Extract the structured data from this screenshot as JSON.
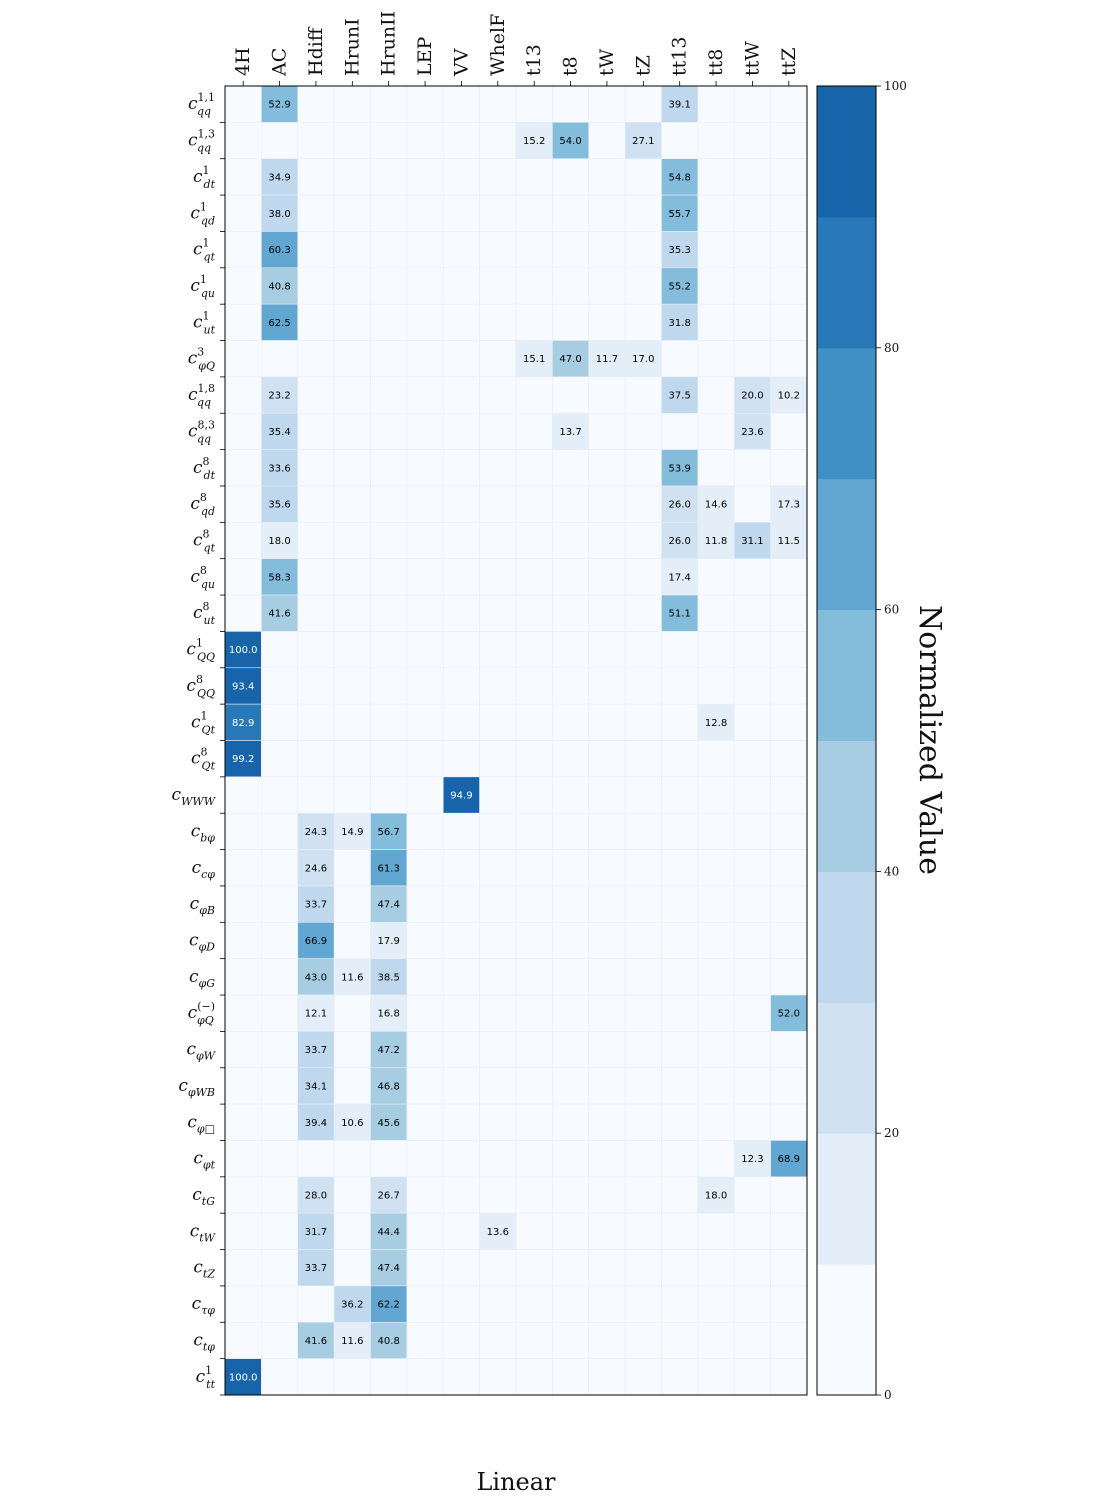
{
  "chart_data": {
    "type": "heatmap",
    "xlabel": "Linear",
    "colorbar_label": "Normalized Value",
    "colorbar_ticks": [
      0,
      20,
      40,
      60,
      80,
      100
    ],
    "value_range": [
      0,
      100
    ],
    "grid": true,
    "columns": [
      "4H",
      "AC",
      "Hdiff",
      "HrunI",
      "HrunII",
      "LEP",
      "VV",
      "WhelF",
      "t13",
      "t8",
      "tW",
      "tZ",
      "tt13",
      "tt8",
      "ttW",
      "ttZ"
    ],
    "rows": [
      {
        "base": "c",
        "sub": "qq",
        "sup": "1,1"
      },
      {
        "base": "c",
        "sub": "qq",
        "sup": "1,3"
      },
      {
        "base": "c",
        "sub": "dt",
        "sup": "1"
      },
      {
        "base": "c",
        "sub": "qd",
        "sup": "1"
      },
      {
        "base": "c",
        "sub": "qt",
        "sup": "1"
      },
      {
        "base": "c",
        "sub": "qu",
        "sup": "1"
      },
      {
        "base": "c",
        "sub": "ut",
        "sup": "1"
      },
      {
        "base": "c",
        "sub": "φQ",
        "sup": "3"
      },
      {
        "base": "c",
        "sub": "qq",
        "sup": "1,8"
      },
      {
        "base": "c",
        "sub": "qq",
        "sup": "8,3"
      },
      {
        "base": "c",
        "sub": "dt",
        "sup": "8"
      },
      {
        "base": "c",
        "sub": "qd",
        "sup": "8"
      },
      {
        "base": "c",
        "sub": "qt",
        "sup": "8"
      },
      {
        "base": "c",
        "sub": "qu",
        "sup": "8"
      },
      {
        "base": "c",
        "sub": "ut",
        "sup": "8"
      },
      {
        "base": "c",
        "sub": "QQ",
        "sup": "1"
      },
      {
        "base": "c",
        "sub": "QQ",
        "sup": "8"
      },
      {
        "base": "c",
        "sub": "Qt",
        "sup": "1"
      },
      {
        "base": "c",
        "sub": "Qt",
        "sup": "8"
      },
      {
        "base": "c",
        "sub": "WWW",
        "sup": ""
      },
      {
        "base": "c",
        "sub": "bφ",
        "sup": ""
      },
      {
        "base": "c",
        "sub": "cφ",
        "sup": ""
      },
      {
        "base": "c",
        "sub": "φB",
        "sup": ""
      },
      {
        "base": "c",
        "sub": "φD",
        "sup": ""
      },
      {
        "base": "c",
        "sub": "φG",
        "sup": ""
      },
      {
        "base": "c",
        "sub": "φQ",
        "sup": "(−)"
      },
      {
        "base": "c",
        "sub": "φW",
        "sup": ""
      },
      {
        "base": "c",
        "sub": "φWB",
        "sup": ""
      },
      {
        "base": "c",
        "sub": "φ□",
        "sup": ""
      },
      {
        "base": "c",
        "sub": "φt",
        "sup": ""
      },
      {
        "base": "c",
        "sub": "tG",
        "sup": ""
      },
      {
        "base": "c",
        "sub": "tW",
        "sup": ""
      },
      {
        "base": "c",
        "sub": "tZ",
        "sup": ""
      },
      {
        "base": "c",
        "sub": "τφ",
        "sup": ""
      },
      {
        "base": "c",
        "sub": "tφ",
        "sup": ""
      },
      {
        "base": "c",
        "sub": "tt",
        "sup": "1"
      }
    ],
    "values": [
      [
        null,
        52.9,
        null,
        null,
        null,
        null,
        null,
        null,
        null,
        null,
        null,
        null,
        39.1,
        null,
        null,
        null
      ],
      [
        null,
        null,
        null,
        null,
        null,
        null,
        null,
        null,
        15.2,
        54.0,
        null,
        27.1,
        null,
        null,
        null,
        null
      ],
      [
        null,
        34.9,
        null,
        null,
        null,
        null,
        null,
        null,
        null,
        null,
        null,
        null,
        54.8,
        null,
        null,
        null
      ],
      [
        null,
        38.0,
        null,
        null,
        null,
        null,
        null,
        null,
        null,
        null,
        null,
        null,
        55.7,
        null,
        null,
        null
      ],
      [
        null,
        60.3,
        null,
        null,
        null,
        null,
        null,
        null,
        null,
        null,
        null,
        null,
        35.3,
        null,
        null,
        null
      ],
      [
        null,
        40.8,
        null,
        null,
        null,
        null,
        null,
        null,
        null,
        null,
        null,
        null,
        55.2,
        null,
        null,
        null
      ],
      [
        null,
        62.5,
        null,
        null,
        null,
        null,
        null,
        null,
        null,
        null,
        null,
        null,
        31.8,
        null,
        null,
        null
      ],
      [
        null,
        null,
        null,
        null,
        null,
        null,
        null,
        null,
        15.1,
        47.0,
        11.7,
        17.0,
        null,
        null,
        null,
        null
      ],
      [
        null,
        23.2,
        null,
        null,
        null,
        null,
        null,
        null,
        null,
        null,
        null,
        null,
        37.5,
        null,
        20.0,
        10.2
      ],
      [
        null,
        35.4,
        null,
        null,
        null,
        null,
        null,
        null,
        null,
        13.7,
        null,
        null,
        null,
        null,
        23.6,
        null
      ],
      [
        null,
        33.6,
        null,
        null,
        null,
        null,
        null,
        null,
        null,
        null,
        null,
        null,
        53.9,
        null,
        null,
        null
      ],
      [
        null,
        35.6,
        null,
        null,
        null,
        null,
        null,
        null,
        null,
        null,
        null,
        null,
        26.0,
        14.6,
        null,
        17.3
      ],
      [
        null,
        18.0,
        null,
        null,
        null,
        null,
        null,
        null,
        null,
        null,
        null,
        null,
        26.0,
        11.8,
        31.1,
        11.5
      ],
      [
        null,
        58.3,
        null,
        null,
        null,
        null,
        null,
        null,
        null,
        null,
        null,
        null,
        17.4,
        null,
        null,
        null
      ],
      [
        null,
        41.6,
        null,
        null,
        null,
        null,
        null,
        null,
        null,
        null,
        null,
        null,
        51.1,
        null,
        null,
        null
      ],
      [
        100.0,
        null,
        null,
        null,
        null,
        null,
        null,
        null,
        null,
        null,
        null,
        null,
        null,
        null,
        null,
        null
      ],
      [
        93.4,
        null,
        null,
        null,
        null,
        null,
        null,
        null,
        null,
        null,
        null,
        null,
        null,
        null,
        null,
        null
      ],
      [
        82.9,
        null,
        null,
        null,
        null,
        null,
        null,
        null,
        null,
        null,
        null,
        null,
        null,
        12.8,
        null,
        null
      ],
      [
        99.2,
        null,
        null,
        null,
        null,
        null,
        null,
        null,
        null,
        null,
        null,
        null,
        null,
        null,
        null,
        null
      ],
      [
        null,
        null,
        null,
        null,
        null,
        null,
        94.9,
        null,
        null,
        null,
        null,
        null,
        null,
        null,
        null,
        null
      ],
      [
        null,
        null,
        24.3,
        14.9,
        56.7,
        null,
        null,
        null,
        null,
        null,
        null,
        null,
        null,
        null,
        null,
        null
      ],
      [
        null,
        null,
        24.6,
        null,
        61.3,
        null,
        null,
        null,
        null,
        null,
        null,
        null,
        null,
        null,
        null,
        null
      ],
      [
        null,
        null,
        33.7,
        null,
        47.4,
        null,
        null,
        null,
        null,
        null,
        null,
        null,
        null,
        null,
        null,
        null
      ],
      [
        null,
        null,
        66.9,
        null,
        17.9,
        null,
        null,
        null,
        null,
        null,
        null,
        null,
        null,
        null,
        null,
        null
      ],
      [
        null,
        null,
        43.0,
        11.6,
        38.5,
        null,
        null,
        null,
        null,
        null,
        null,
        null,
        null,
        null,
        null,
        null
      ],
      [
        null,
        null,
        12.1,
        null,
        16.8,
        null,
        null,
        null,
        null,
        null,
        null,
        null,
        null,
        null,
        null,
        52.0
      ],
      [
        null,
        null,
        33.7,
        null,
        47.2,
        null,
        null,
        null,
        null,
        null,
        null,
        null,
        null,
        null,
        null,
        null
      ],
      [
        null,
        null,
        34.1,
        null,
        46.8,
        null,
        null,
        null,
        null,
        null,
        null,
        null,
        null,
        null,
        null,
        null
      ],
      [
        null,
        null,
        39.4,
        10.6,
        45.6,
        null,
        null,
        null,
        null,
        null,
        null,
        null,
        null,
        null,
        null,
        null
      ],
      [
        null,
        null,
        null,
        null,
        null,
        null,
        null,
        null,
        null,
        null,
        null,
        null,
        null,
        null,
        12.3,
        68.9
      ],
      [
        null,
        null,
        28.0,
        null,
        26.7,
        null,
        null,
        null,
        null,
        null,
        null,
        null,
        null,
        18.0,
        null,
        null
      ],
      [
        null,
        null,
        31.7,
        null,
        44.4,
        null,
        null,
        13.6,
        null,
        null,
        null,
        null,
        null,
        null,
        null,
        null
      ],
      [
        null,
        null,
        33.7,
        null,
        47.4,
        null,
        null,
        null,
        null,
        null,
        null,
        null,
        null,
        null,
        null,
        null
      ],
      [
        null,
        null,
        null,
        36.2,
        62.2,
        null,
        null,
        null,
        null,
        null,
        null,
        null,
        null,
        null,
        null,
        null
      ],
      [
        null,
        null,
        41.6,
        11.6,
        40.8,
        null,
        null,
        null,
        null,
        null,
        null,
        null,
        null,
        null,
        null,
        null
      ],
      [
        100.0,
        null,
        null,
        null,
        null,
        null,
        null,
        null,
        null,
        null,
        null,
        null,
        null,
        null,
        null,
        null
      ]
    ],
    "color_bins": [
      "#f7fbff",
      "#e3eef9",
      "#d0e1f2",
      "#bfd8ed",
      "#a6cde2",
      "#84bcdb",
      "#61a7d2",
      "#4090c5",
      "#2979b9",
      "#1764ab"
    ],
    "dark_text_color": "#000000"
  }
}
